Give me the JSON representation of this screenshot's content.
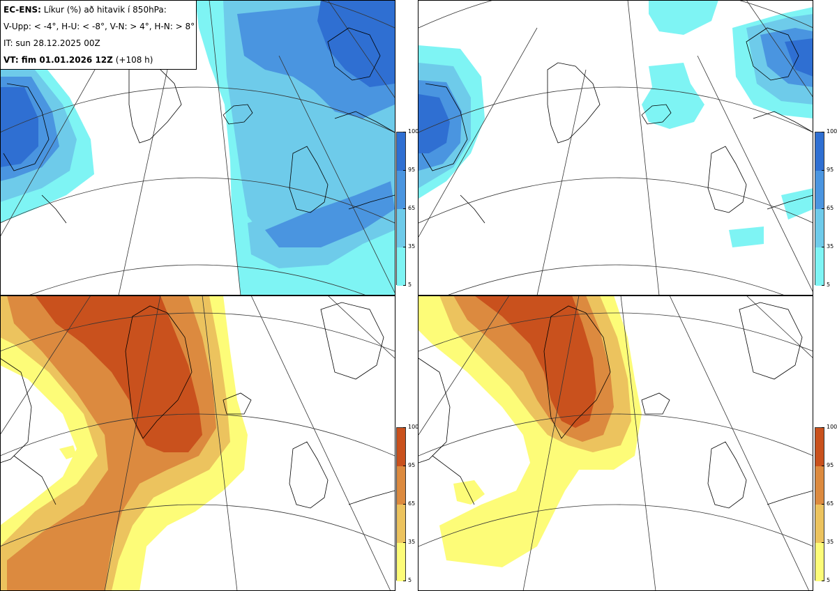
{
  "info": {
    "model": "EC-ENS:",
    "title_rest": "Líkur (%) að hitavik í 850hPa:",
    "thresholds": "V-Upp: < -4°, H-U: < -8°, V-N: > 4°, H-N: > 8°",
    "issue_time": "IT: sun 28.12.2025 00Z",
    "valid_time_label": "VT: fim 01.01.2026 12Z",
    "lead": "(+108 h)"
  },
  "panels": [
    {
      "id": "V-Upp",
      "threshold": "< -4°",
      "scheme": "cold"
    },
    {
      "id": "H-U",
      "threshold": "< -8°",
      "scheme": "cold"
    },
    {
      "id": "V-N",
      "threshold": "> 4°",
      "scheme": "warm"
    },
    {
      "id": "H-N",
      "threshold": "> 8°",
      "scheme": "warm"
    }
  ],
  "colorbar": {
    "ticks": [
      "100",
      "95",
      "65",
      "35",
      "5"
    ],
    "cold_colors": [
      "#2f6fd2",
      "#4a95e0",
      "#6ecbea",
      "#7ef4f4"
    ],
    "warm_colors": [
      "#c9511d",
      "#dc8a3f",
      "#ecc35e",
      "#fdfc78"
    ]
  }
}
